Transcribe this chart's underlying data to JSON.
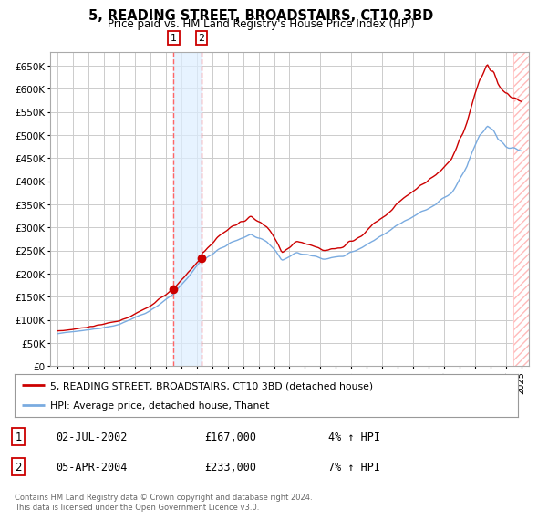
{
  "title": "5, READING STREET, BROADSTAIRS, CT10 3BD",
  "subtitle": "Price paid vs. HM Land Registry's House Price Index (HPI)",
  "ylim": [
    0,
    680000
  ],
  "yticks": [
    0,
    50000,
    100000,
    150000,
    200000,
    250000,
    300000,
    350000,
    400000,
    450000,
    500000,
    550000,
    600000,
    650000
  ],
  "xlim_start": 1994.5,
  "xlim_end": 2025.5,
  "legend_label_red": "5, READING STREET, BROADSTAIRS, CT10 3BD (detached house)",
  "legend_label_blue": "HPI: Average price, detached house, Thanet",
  "footnote": "Contains HM Land Registry data © Crown copyright and database right 2024.\nThis data is licensed under the Open Government Licence v3.0.",
  "sale1_date": "02-JUL-2002",
  "sale1_price": "£167,000",
  "sale1_hpi": "4% ↑ HPI",
  "sale1_x": 2002.5,
  "sale2_date": "05-APR-2004",
  "sale2_price": "£233,000",
  "sale2_hpi": "7% ↑ HPI",
  "sale2_x": 2004.3,
  "sale1_y": 167000,
  "sale2_y": 233000,
  "red_color": "#cc0000",
  "blue_color": "#7aabe0",
  "grid_color": "#cccccc",
  "bg_color": "#ffffff",
  "hatch_right_start": 2024.5
}
